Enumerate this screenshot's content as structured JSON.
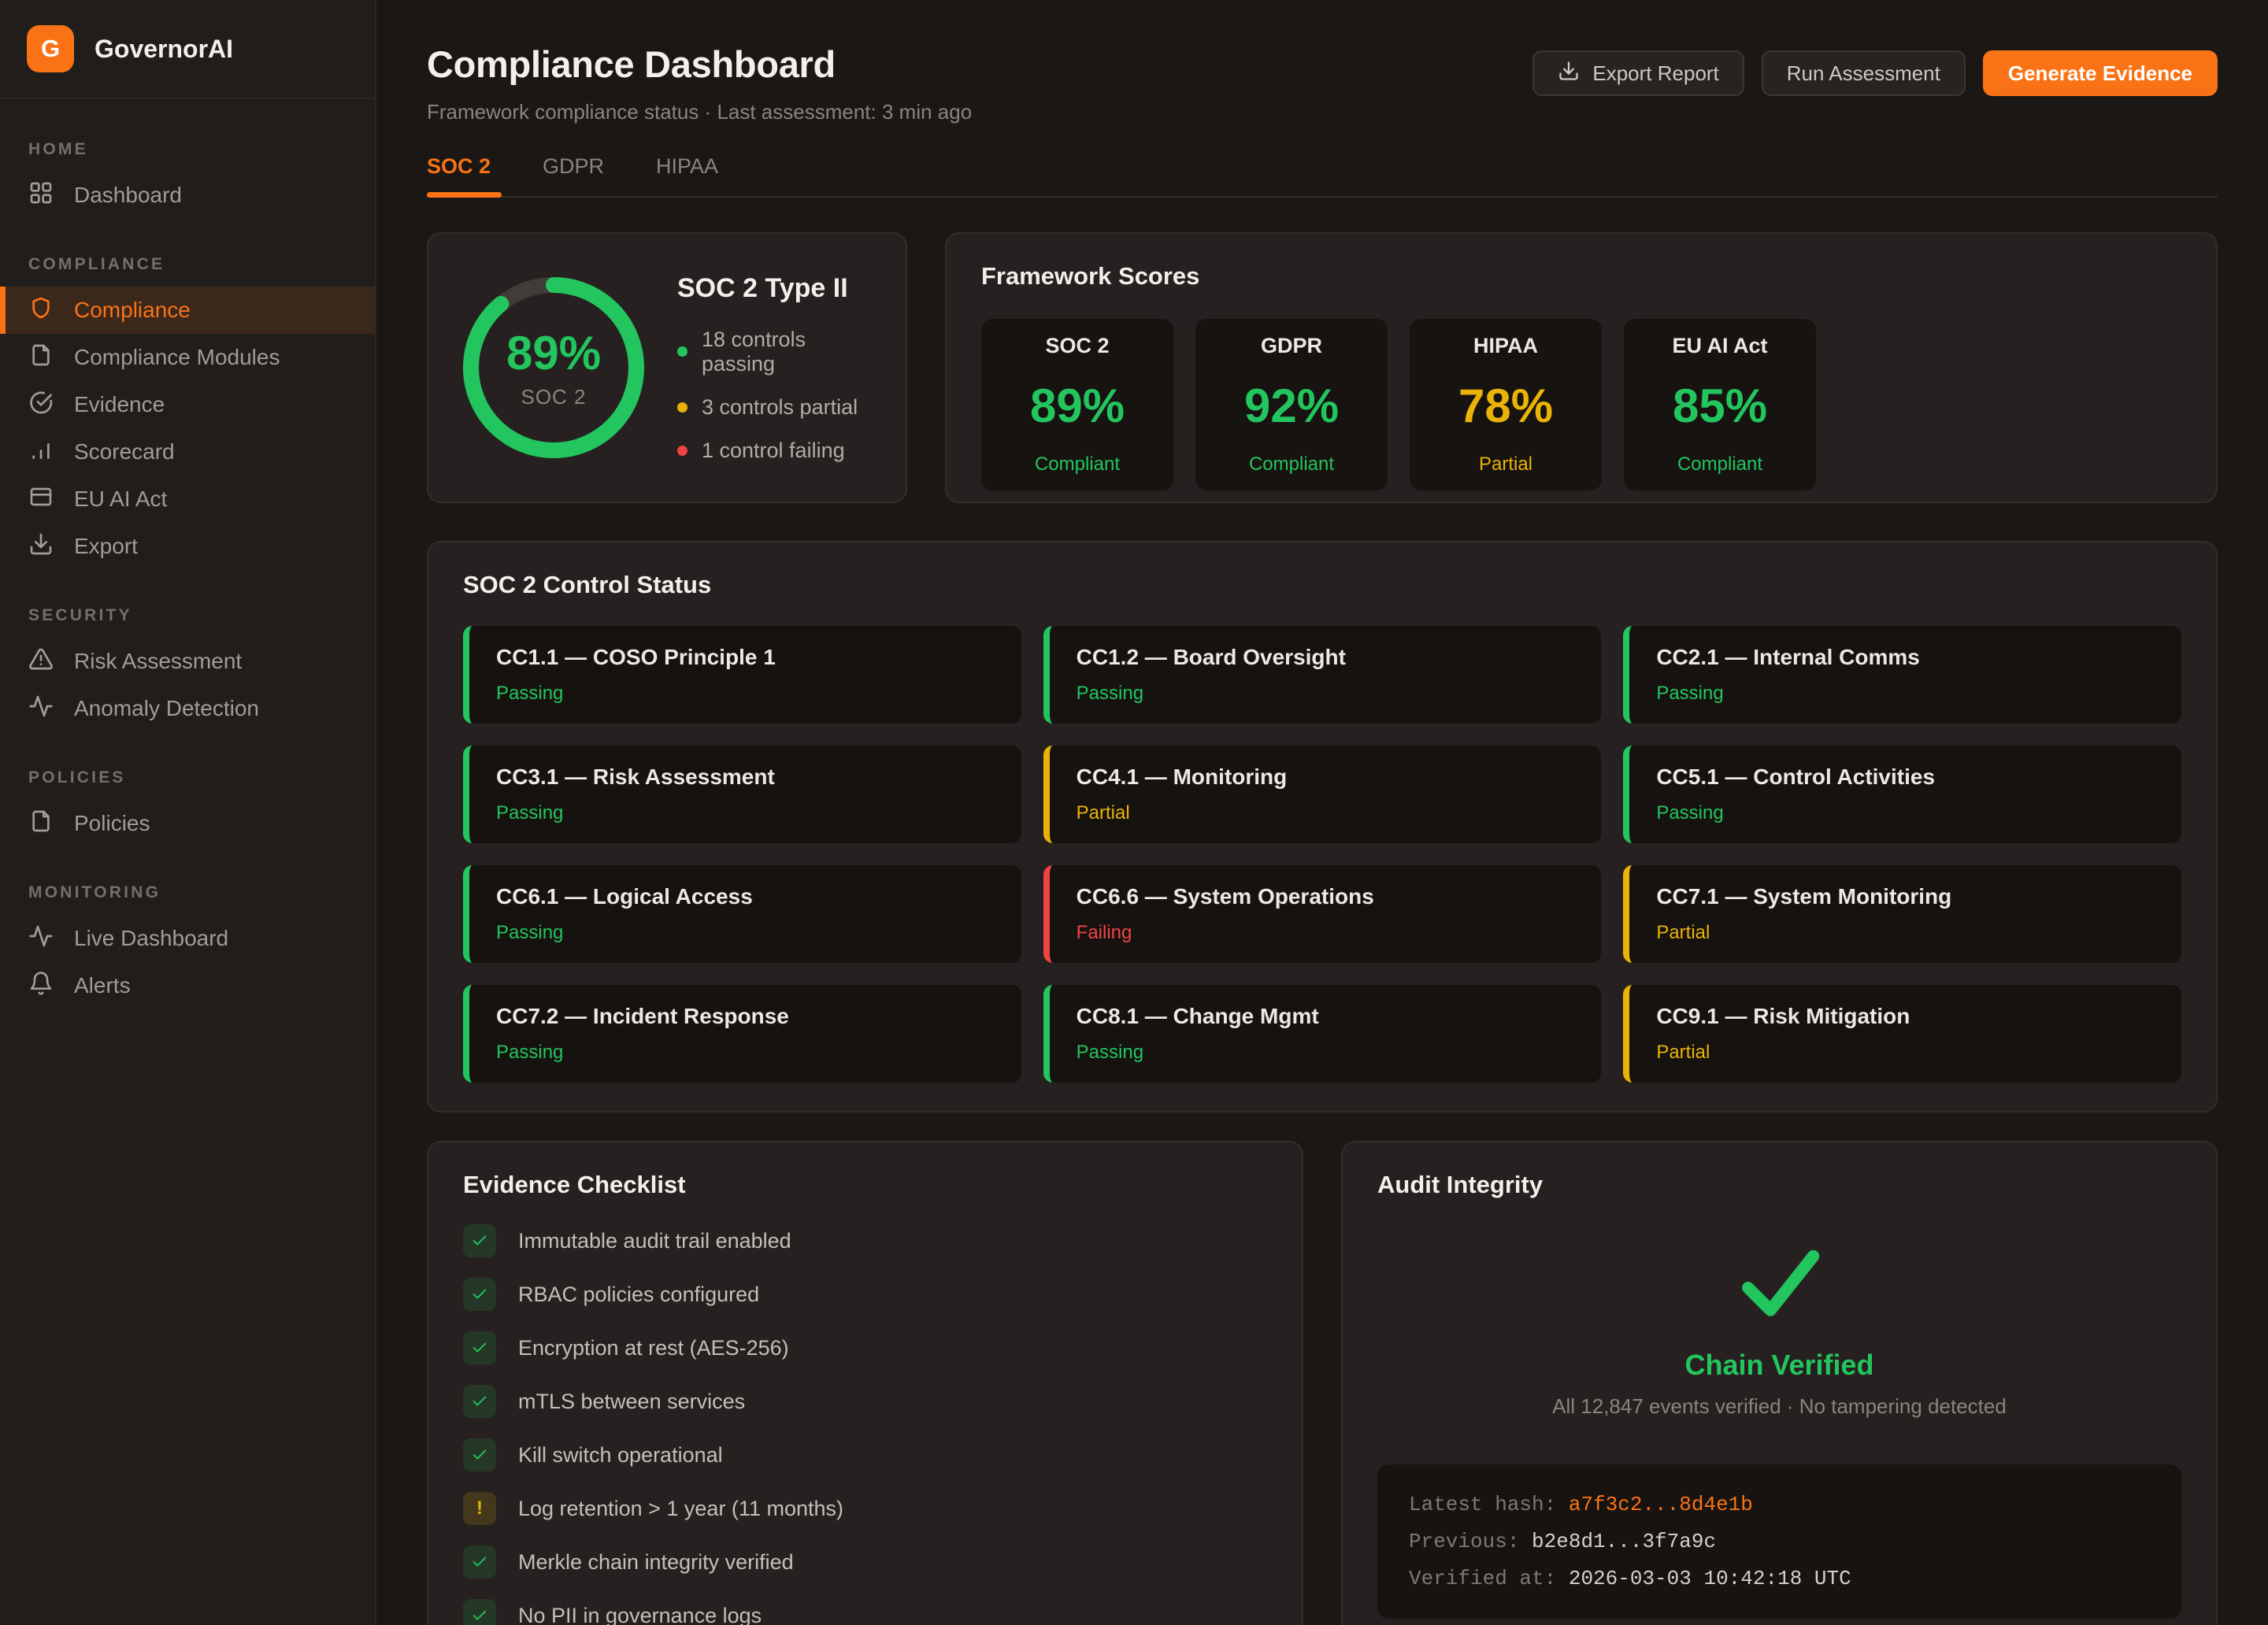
{
  "colors": {
    "accent_orange": "#f97316",
    "green": "#22c55e",
    "yellow": "#eab308",
    "red": "#ef4444"
  },
  "brand": {
    "name": "GovernorAI",
    "logo_letter": "G"
  },
  "sidebar": {
    "sections": [
      {
        "label": "HOME",
        "items": [
          {
            "label": "Dashboard",
            "icon": "grid-icon",
            "active": false
          }
        ]
      },
      {
        "label": "COMPLIANCE",
        "items": [
          {
            "label": "Compliance",
            "icon": "shield-icon",
            "active": true
          },
          {
            "label": "Compliance Modules",
            "icon": "file-icon",
            "active": false
          },
          {
            "label": "Evidence",
            "icon": "check-circle-icon",
            "active": false
          },
          {
            "label": "Scorecard",
            "icon": "bar-chart-icon",
            "active": false
          },
          {
            "label": "EU AI Act",
            "icon": "window-icon",
            "active": false
          },
          {
            "label": "Export",
            "icon": "download-icon",
            "active": false
          }
        ]
      },
      {
        "label": "SECURITY",
        "items": [
          {
            "label": "Risk Assessment",
            "icon": "alert-triangle-icon",
            "active": false
          },
          {
            "label": "Anomaly Detection",
            "icon": "activity-icon",
            "active": false
          }
        ]
      },
      {
        "label": "POLICIES",
        "items": [
          {
            "label": "Policies",
            "icon": "file-icon",
            "active": false
          }
        ]
      },
      {
        "label": "MONITORING",
        "items": [
          {
            "label": "Live Dashboard",
            "icon": "activity-icon",
            "active": false
          },
          {
            "label": "Alerts",
            "icon": "bell-icon",
            "active": false
          }
        ]
      }
    ]
  },
  "header": {
    "title": "Compliance Dashboard",
    "subtitle": "Framework compliance status · Last assessment: 3 min ago",
    "actions": [
      {
        "label": "Export Report",
        "icon": "download-icon",
        "variant": "secondary"
      },
      {
        "label": "Run Assessment",
        "icon": "",
        "variant": "secondary"
      },
      {
        "label": "Generate Evidence",
        "icon": "",
        "variant": "primary"
      }
    ]
  },
  "tabs": [
    {
      "label": "SOC 2",
      "active": true
    },
    {
      "label": "GDPR",
      "active": false
    },
    {
      "label": "HIPAA",
      "active": false
    }
  ],
  "overview": {
    "donut": {
      "percent": 89,
      "percent_label": "89%",
      "label": "SOC 2"
    },
    "title": "SOC 2 Type II",
    "legend": [
      {
        "text": "18 controls passing",
        "tone": "green"
      },
      {
        "text": "3 controls partial",
        "tone": "yellow"
      },
      {
        "text": "1 control failing",
        "tone": "red"
      }
    ]
  },
  "framework_scores": {
    "title": "Framework Scores",
    "items": [
      {
        "name": "SOC 2",
        "score": "89%",
        "status": "Compliant",
        "tone": "green"
      },
      {
        "name": "GDPR",
        "score": "92%",
        "status": "Compliant",
        "tone": "green"
      },
      {
        "name": "HIPAA",
        "score": "78%",
        "status": "Partial",
        "tone": "yellow"
      },
      {
        "name": "EU AI Act",
        "score": "85%",
        "status": "Compliant",
        "tone": "green"
      }
    ]
  },
  "control_status": {
    "title": "SOC 2 Control Status",
    "controls": [
      {
        "name": "CC1.1 — COSO Principle 1",
        "status": "Passing"
      },
      {
        "name": "CC1.2 — Board Oversight",
        "status": "Passing"
      },
      {
        "name": "CC2.1 — Internal Comms",
        "status": "Passing"
      },
      {
        "name": "CC3.1 — Risk Assessment",
        "status": "Passing"
      },
      {
        "name": "CC4.1 — Monitoring",
        "status": "Partial"
      },
      {
        "name": "CC5.1 — Control Activities",
        "status": "Passing"
      },
      {
        "name": "CC6.1 — Logical Access",
        "status": "Passing"
      },
      {
        "name": "CC6.6 — System Operations",
        "status": "Failing"
      },
      {
        "name": "CC7.1 — System Monitoring",
        "status": "Partial"
      },
      {
        "name": "CC7.2 — Incident Response",
        "status": "Passing"
      },
      {
        "name": "CC8.1 — Change Mgmt",
        "status": "Passing"
      },
      {
        "name": "CC9.1 — Risk Mitigation",
        "status": "Partial"
      }
    ]
  },
  "evidence_checklist": {
    "title": "Evidence Checklist",
    "items": [
      {
        "text": "Immutable audit trail enabled",
        "state": "pass"
      },
      {
        "text": "RBAC policies configured",
        "state": "pass"
      },
      {
        "text": "Encryption at rest (AES-256)",
        "state": "pass"
      },
      {
        "text": "mTLS between services",
        "state": "pass"
      },
      {
        "text": "Kill switch operational",
        "state": "pass"
      },
      {
        "text": "Log retention > 1 year (11 months)",
        "state": "warn"
      },
      {
        "text": "Merkle chain integrity verified",
        "state": "pass"
      },
      {
        "text": "No PII in governance logs",
        "state": "pass"
      }
    ]
  },
  "audit_integrity": {
    "title": "Audit Integrity",
    "status": "Chain Verified",
    "summary": "All 12,847 events verified · No tampering detected",
    "hash_lines": [
      {
        "label": "Latest hash: ",
        "value": "a7f3c2...8d4e1b",
        "highlight": true
      },
      {
        "label": "Previous: ",
        "value": "b2e8d1...3f7a9c",
        "highlight": false
      },
      {
        "label": "Verified at: ",
        "value": "2026-03-03 10:42:18 UTC",
        "highlight": false
      }
    ]
  }
}
